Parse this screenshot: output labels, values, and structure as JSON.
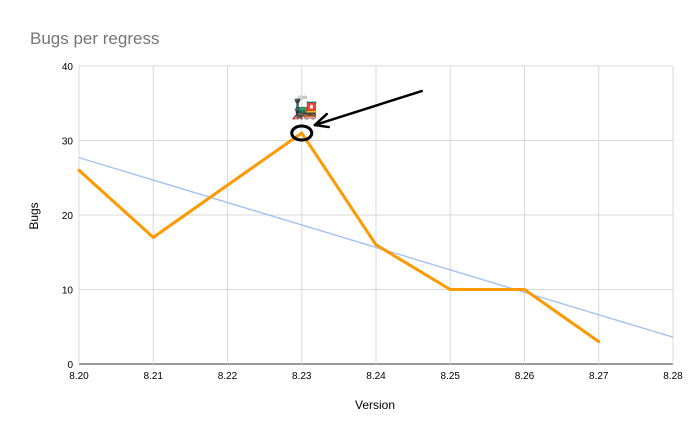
{
  "chart_data": {
    "type": "line",
    "title": "Bugs per regress",
    "xlabel": "Version",
    "ylabel": "Bugs",
    "x_ticks": [
      "8.20",
      "8.21",
      "8.22",
      "8.23",
      "8.24",
      "8.25",
      "8.26",
      "8.27",
      "8.28"
    ],
    "y_ticks": [
      "0",
      "10",
      "20",
      "30",
      "40"
    ],
    "xlim": [
      8.2,
      8.28
    ],
    "ylim": [
      0,
      40
    ],
    "grid": true,
    "legend": "none",
    "series": [
      {
        "x": [
          8.2,
          8.21,
          8.23,
          8.24,
          8.25,
          8.26,
          8.27
        ],
        "values": [
          26,
          17,
          31,
          16,
          10,
          10,
          3
        ],
        "color": "#ff9900"
      }
    ],
    "trendline": {
      "type": "linear",
      "x": [
        8.2,
        8.28
      ],
      "values": [
        27.7,
        3.6
      ],
      "color": "#a4c2f4"
    },
    "annotations": [
      {
        "kind": "circle-marker",
        "x": 8.23,
        "y": 31,
        "color": "#000000"
      },
      {
        "kind": "arrow",
        "points_to_x": 8.23,
        "points_to_y": 31,
        "color": "#000000"
      },
      {
        "kind": "sticker",
        "emoji": "🚂",
        "icon": "locomotive-icon",
        "x": 8.23,
        "y": 34.5
      }
    ]
  }
}
